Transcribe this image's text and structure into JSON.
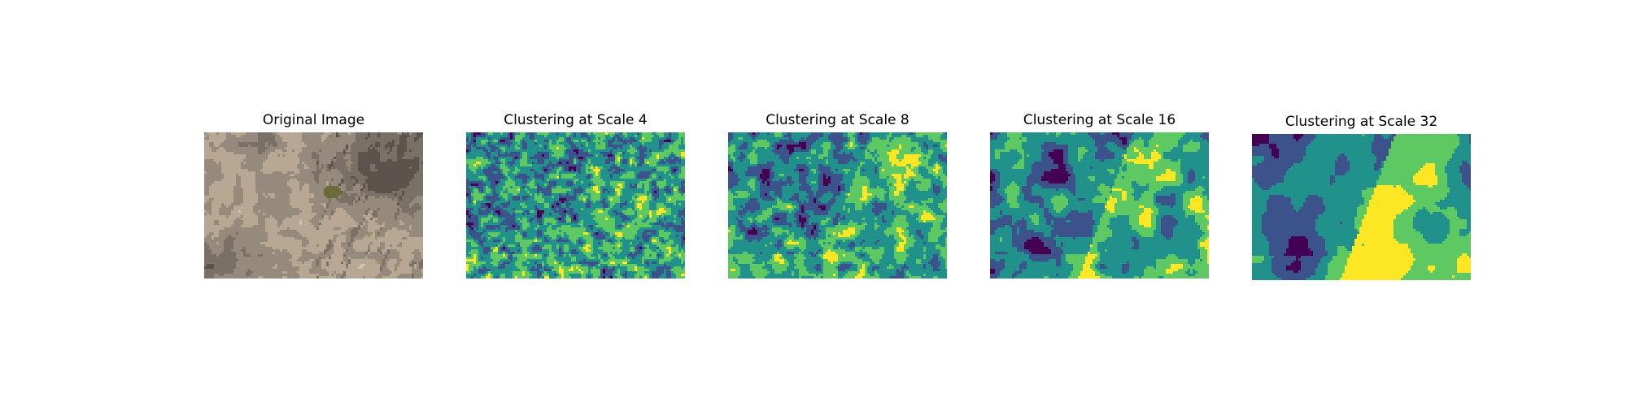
{
  "figure": {
    "panels": [
      {
        "title": "Original Image",
        "kind": "photo",
        "description_colors": {
          "ground": "#b8a893",
          "ground_light": "#cfc2ae",
          "shadow": "#5c544c",
          "shrub": "#6b6a3a"
        }
      },
      {
        "title": "Clustering at Scale 4",
        "kind": "cluster",
        "seed": 4,
        "freq": 0.34
      },
      {
        "title": "Clustering at Scale 8",
        "kind": "cluster",
        "seed": 8,
        "freq": 0.2
      },
      {
        "title": "Clustering at Scale 16",
        "kind": "cluster",
        "seed": 16,
        "freq": 0.11
      },
      {
        "title": "Clustering at Scale 32",
        "kind": "cluster",
        "seed": 32,
        "freq": 0.055
      }
    ],
    "palette": [
      "#440154",
      "#3b528b",
      "#21918c",
      "#5ec962",
      "#fde725"
    ]
  }
}
